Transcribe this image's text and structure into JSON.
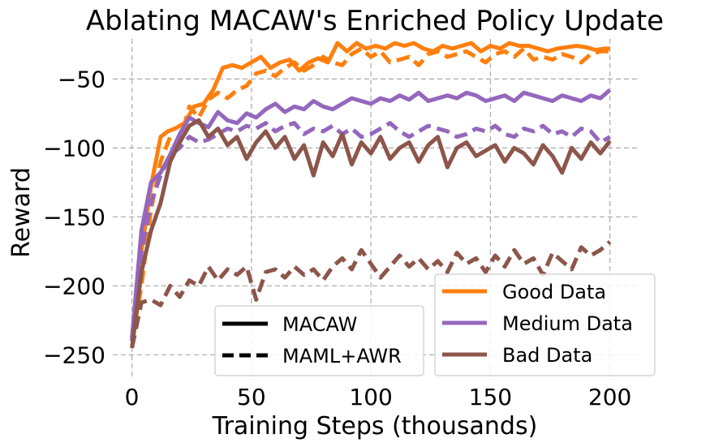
{
  "chart_data": {
    "type": "line",
    "title": "Ablating MACAW's Enriched Policy Update",
    "xlabel": "Training Steps (thousands)",
    "ylabel": "Reward",
    "xlim": [
      -8,
      212
    ],
    "ylim": [
      -268,
      -21
    ],
    "xticks": [
      0,
      50,
      100,
      150,
      200
    ],
    "yticks": [
      -50,
      -100,
      -150,
      -200,
      -250
    ],
    "xtick_labels": [
      "0",
      "50",
      "100",
      "150",
      "200"
    ],
    "ytick_labels": [
      "−50",
      "−100",
      "−150",
      "−200",
      "−250"
    ],
    "grid": true,
    "color_legend": {
      "placement": "lower-right",
      "entries": [
        {
          "label": "Good Data",
          "color": "#ff7f0e"
        },
        {
          "label": "Medium Data",
          "color": "#9467bd"
        },
        {
          "label": "Bad Data",
          "color": "#8c564b"
        }
      ]
    },
    "style_legend": {
      "placement": "lower-center",
      "entries": [
        {
          "label": "MACAW",
          "style": "solid",
          "color": "#000000"
        },
        {
          "label": "MAML+AWR",
          "style": "dashed",
          "color": "#000000"
        }
      ]
    },
    "series": [
      {
        "name": "Good Data MACAW",
        "group": "Good Data",
        "method": "MACAW",
        "color": "#ff7f0e",
        "style": "solid",
        "x": [
          0,
          4,
          8,
          12,
          15,
          18,
          22,
          26,
          30,
          34,
          38,
          42,
          46,
          50,
          54,
          58,
          62,
          66,
          70,
          74,
          78,
          82,
          86,
          90,
          94,
          98,
          102,
          106,
          110,
          114,
          118,
          122,
          126,
          130,
          134,
          138,
          142,
          146,
          150,
          154,
          158,
          162,
          166,
          170,
          174,
          178,
          182,
          186,
          190,
          194,
          198,
          200
        ],
        "y": [
          -238,
          -175,
          -128,
          -92,
          -88,
          -86,
          -82,
          -70,
          -68,
          -58,
          -42,
          -40,
          -42,
          -38,
          -34,
          -42,
          -38,
          -36,
          -44,
          -38,
          -35,
          -38,
          -24,
          -30,
          -24,
          -28,
          -26,
          -28,
          -24,
          -26,
          -24,
          -28,
          -30,
          -26,
          -28,
          -26,
          -24,
          -30,
          -26,
          -28,
          -24,
          -26,
          -26,
          -28,
          -30,
          -28,
          -27,
          -26,
          -27,
          -29,
          -28,
          -28
        ]
      },
      {
        "name": "Good Data MAML+AWR",
        "group": "Good Data",
        "method": "MAML+AWR",
        "color": "#ff7f0e",
        "style": "dashed",
        "x": [
          0,
          4,
          8,
          12,
          16,
          20,
          24,
          28,
          32,
          36,
          40,
          44,
          48,
          52,
          56,
          60,
          64,
          68,
          72,
          76,
          80,
          84,
          88,
          92,
          96,
          100,
          104,
          108,
          112,
          116,
          120,
          124,
          128,
          132,
          136,
          140,
          144,
          148,
          152,
          156,
          160,
          164,
          168,
          172,
          176,
          180,
          184,
          188,
          192,
          196,
          200
        ],
        "y": [
          -240,
          -200,
          -145,
          -110,
          -92,
          -96,
          -70,
          -78,
          -65,
          -60,
          -64,
          -58,
          -55,
          -46,
          -44,
          -48,
          -42,
          -38,
          -44,
          -40,
          -34,
          -38,
          -40,
          -32,
          -28,
          -34,
          -30,
          -38,
          -36,
          -34,
          -40,
          -32,
          -30,
          -34,
          -32,
          -30,
          -34,
          -38,
          -32,
          -30,
          -34,
          -28,
          -36,
          -34,
          -36,
          -32,
          -34,
          -38,
          -32,
          -30,
          -30
        ]
      },
      {
        "name": "Medium Data MACAW",
        "group": "Medium Data",
        "method": "MACAW",
        "color": "#9467bd",
        "style": "solid",
        "x": [
          0,
          4,
          8,
          12,
          16,
          20,
          24,
          28,
          32,
          36,
          40,
          44,
          48,
          52,
          56,
          60,
          64,
          68,
          72,
          76,
          80,
          84,
          88,
          92,
          96,
          100,
          104,
          108,
          112,
          116,
          120,
          124,
          128,
          132,
          136,
          140,
          144,
          148,
          152,
          156,
          160,
          164,
          168,
          172,
          176,
          180,
          184,
          188,
          192,
          196,
          200
        ],
        "y": [
          -238,
          -160,
          -125,
          -118,
          -105,
          -90,
          -78,
          -82,
          -85,
          -74,
          -80,
          -82,
          -75,
          -78,
          -72,
          -68,
          -74,
          -70,
          -72,
          -66,
          -70,
          -72,
          -68,
          -64,
          -66,
          -68,
          -64,
          -66,
          -62,
          -65,
          -60,
          -66,
          -64,
          -62,
          -64,
          -60,
          -62,
          -66,
          -64,
          -62,
          -66,
          -60,
          -62,
          -64,
          -66,
          -62,
          -64,
          -66,
          -62,
          -64,
          -58
        ]
      },
      {
        "name": "Medium Data MAML+AWR",
        "group": "Medium Data",
        "method": "MAML+AWR",
        "color": "#9467bd",
        "style": "dashed",
        "x": [
          0,
          4,
          8,
          12,
          16,
          20,
          24,
          28,
          32,
          36,
          40,
          44,
          48,
          52,
          56,
          60,
          64,
          68,
          72,
          76,
          80,
          84,
          88,
          92,
          96,
          100,
          104,
          108,
          112,
          116,
          120,
          124,
          128,
          132,
          136,
          140,
          144,
          148,
          152,
          156,
          160,
          164,
          168,
          172,
          176,
          180,
          184,
          188,
          192,
          196,
          200
        ],
        "y": [
          -240,
          -175,
          -140,
          -120,
          -105,
          -100,
          -92,
          -96,
          -94,
          -90,
          -86,
          -88,
          -84,
          -86,
          -82,
          -88,
          -84,
          -82,
          -90,
          -86,
          -88,
          -84,
          -90,
          -86,
          -92,
          -90,
          -86,
          -82,
          -88,
          -92,
          -88,
          -84,
          -86,
          -88,
          -92,
          -90,
          -86,
          -88,
          -84,
          -90,
          -92,
          -86,
          -88,
          -84,
          -90,
          -88,
          -92,
          -86,
          -88,
          -96,
          -92
        ]
      },
      {
        "name": "Bad Data MACAW",
        "group": "Bad Data",
        "method": "MACAW",
        "color": "#8c564b",
        "style": "solid",
        "x": [
          0,
          4,
          8,
          12,
          16,
          20,
          24,
          28,
          32,
          36,
          40,
          44,
          48,
          52,
          56,
          60,
          64,
          68,
          72,
          76,
          80,
          84,
          88,
          92,
          96,
          100,
          104,
          108,
          112,
          116,
          120,
          124,
          128,
          132,
          136,
          140,
          144,
          148,
          152,
          156,
          160,
          164,
          168,
          172,
          176,
          180,
          184,
          188,
          192,
          196,
          200
        ],
        "y": [
          -245,
          -190,
          -160,
          -140,
          -110,
          -96,
          -84,
          -80,
          -92,
          -86,
          -98,
          -92,
          -108,
          -96,
          -88,
          -100,
          -92,
          -108,
          -98,
          -120,
          -96,
          -106,
          -90,
          -112,
          -96,
          -104,
          -92,
          -108,
          -100,
          -96,
          -110,
          -98,
          -92,
          -114,
          -100,
          -96,
          -106,
          -102,
          -98,
          -110,
          -100,
          -104,
          -112,
          -98,
          -106,
          -118,
          -100,
          -108,
          -96,
          -104,
          -95
        ]
      },
      {
        "name": "Bad Data MAML+AWR",
        "group": "Bad Data",
        "method": "MAML+AWR",
        "color": "#8c564b",
        "style": "dashed",
        "x": [
          0,
          4,
          8,
          12,
          16,
          20,
          24,
          28,
          32,
          36,
          40,
          44,
          48,
          52,
          56,
          60,
          64,
          68,
          72,
          76,
          80,
          84,
          88,
          92,
          96,
          100,
          104,
          108,
          112,
          116,
          120,
          124,
          128,
          132,
          136,
          140,
          144,
          148,
          152,
          156,
          160,
          164,
          168,
          172,
          176,
          180,
          184,
          188,
          192,
          196,
          200
        ],
        "y": [
          -245,
          -212,
          -210,
          -214,
          -200,
          -208,
          -196,
          -200,
          -186,
          -196,
          -188,
          -192,
          -186,
          -210,
          -190,
          -188,
          -194,
          -186,
          -192,
          -188,
          -196,
          -186,
          -180,
          -188,
          -174,
          -184,
          -194,
          -186,
          -178,
          -186,
          -180,
          -188,
          -182,
          -190,
          -176,
          -184,
          -180,
          -190,
          -178,
          -186,
          -174,
          -184,
          -180,
          -192,
          -176,
          -182,
          -188,
          -172,
          -178,
          -174,
          -168
        ]
      }
    ]
  }
}
